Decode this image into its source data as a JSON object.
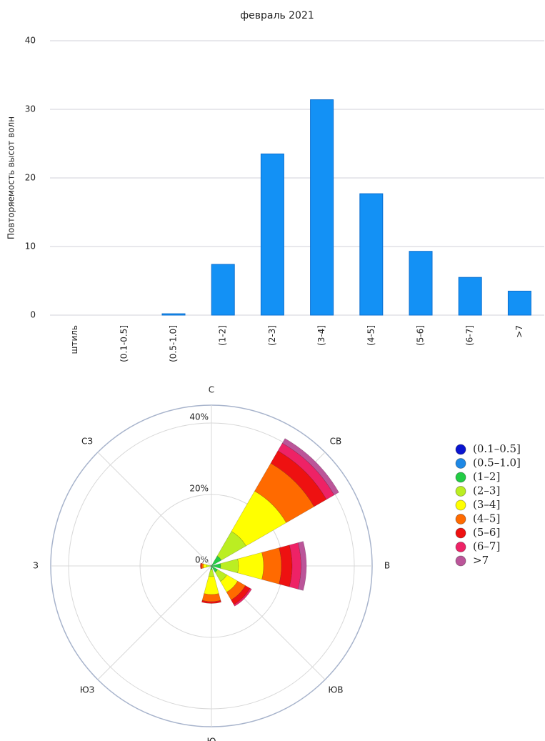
{
  "chart_data": [
    {
      "type": "bar",
      "title": "февраль 2021",
      "y_label": "Повторяемость высот волн",
      "categories": [
        "штиль",
        "(0.1-0.5]",
        "(0.5-1.0]",
        "(1-2]",
        "(2-3]",
        "(3-4]",
        "(4-5]",
        "(5-6]",
        "(6-7]",
        ">7"
      ],
      "values": [
        0,
        0,
        0.2,
        7.4,
        23.5,
        31.4,
        17.7,
        9.3,
        5.5,
        3.5
      ],
      "color": "#1391f5",
      "ylim": [
        0,
        40
      ],
      "yticks": [
        0,
        10,
        20,
        30,
        40
      ],
      "grid": true
    },
    {
      "type": "windrose",
      "categories": [
        "С",
        "СВ",
        "В",
        "ЮВ",
        "Ю",
        "ЮЗ",
        "З",
        "СЗ"
      ],
      "rlim": [
        0,
        45
      ],
      "rticks": [
        {
          "value": 0,
          "label": "0%"
        },
        {
          "value": 20,
          "label": "20%"
        },
        {
          "value": 40,
          "label": "40%"
        }
      ],
      "legend": "right",
      "series": [
        {
          "name": "(0.1–0.5]",
          "color": "#0a14d0",
          "values": [
            0,
            0,
            0,
            0,
            0,
            0,
            0,
            0
          ]
        },
        {
          "name": "(0.5–1.0]",
          "color": "#1e88e5",
          "values": [
            0,
            0.2,
            0.1,
            0,
            0,
            0,
            0,
            0
          ]
        },
        {
          "name": "(1–2]",
          "color": "#22cc44",
          "values": [
            0,
            3,
            2.5,
            2,
            1,
            0,
            0.3,
            0
          ]
        },
        {
          "name": "(2–3]",
          "color": "#bbee22",
          "values": [
            0,
            8,
            5,
            3,
            2,
            0,
            1,
            0
          ]
        },
        {
          "name": "(3–4]",
          "color": "#ffff00",
          "values": [
            0,
            13,
            7,
            3.5,
            5,
            0,
            1,
            0
          ]
        },
        {
          "name": "(4–5]",
          "color": "#ff6a00",
          "values": [
            0,
            9,
            5,
            2.5,
            2,
            0,
            0.5,
            0
          ]
        },
        {
          "name": "(5–6]",
          "color": "#ee1111",
          "values": [
            0,
            4,
            3,
            1.5,
            0.5,
            0,
            0.3,
            0
          ]
        },
        {
          "name": "(6–7]",
          "color": "#ee2266",
          "values": [
            0,
            2.5,
            2.5,
            0.5,
            0,
            0,
            0,
            0
          ]
        },
        {
          "name": ">7",
          "color": "#bb5599",
          "values": [
            0,
            1.5,
            1.5,
            0,
            0,
            0,
            0,
            0
          ]
        }
      ]
    }
  ]
}
